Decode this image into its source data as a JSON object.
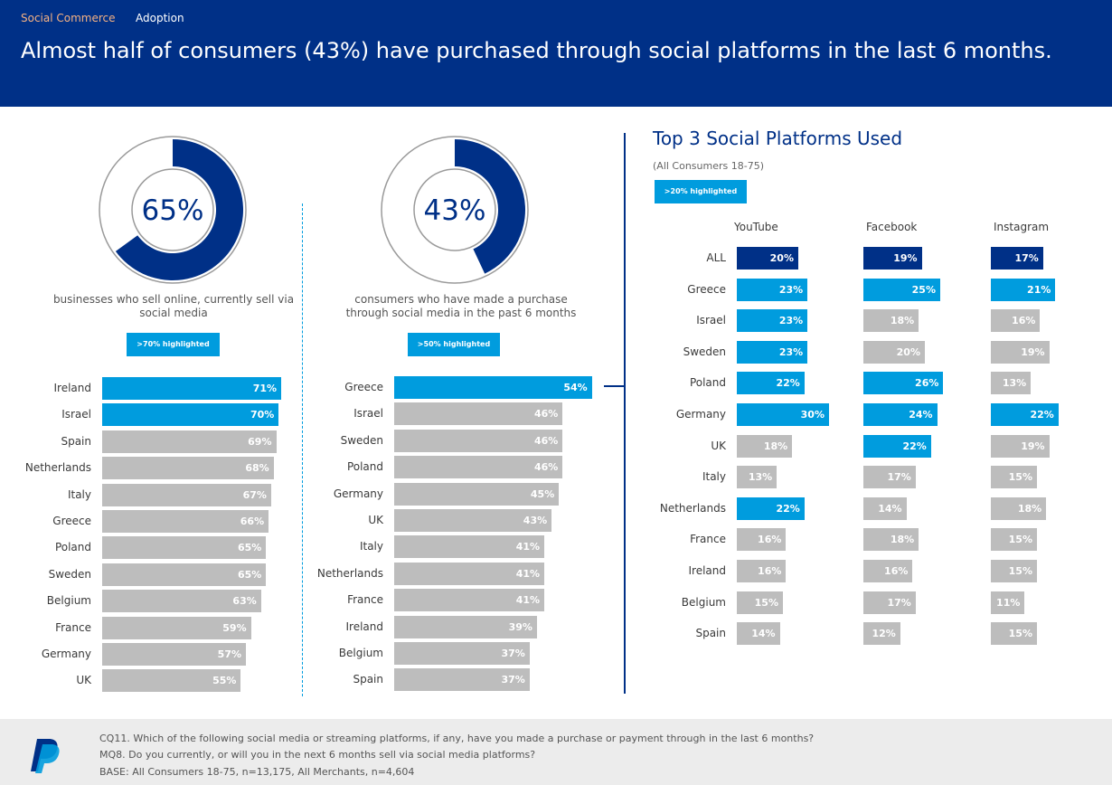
{
  "header": {
    "tabs": [
      "Social Commerce",
      "Adoption"
    ],
    "headline": "Almost half of consumers (43%) have purchased through social platforms in the last 6 months."
  },
  "colors": {
    "navy": "#003087",
    "highlight": "#009cde",
    "grey": "#bdbdbd",
    "tab_active": "#f4b183"
  },
  "donuts": [
    {
      "value_label": "65%",
      "value": 65,
      "label": "businesses who sell online, currently sell via social media",
      "badge": ">70% highlighted"
    },
    {
      "value_label": "43%",
      "value": 43,
      "label": "consumers who have made a purchase through social media in the past 6 months",
      "badge": ">50% highlighted"
    }
  ],
  "right_panel": {
    "title": "Top 3 Social Platforms Used",
    "subtitle": "(All Consumers 18-75)",
    "badge": ">20% highlighted",
    "columns": [
      "YouTube",
      "Facebook",
      "Instagram"
    ]
  },
  "footer": {
    "lines": [
      "CQ11. Which of the following social media or streaming platforms, if any, have you made a purchase or payment through in the last 6 months?",
      "MQ8. Do you currently, or will you in the next 6 months sell via social media platforms?",
      "BASE: All Consumers 18-75, n=13,175, All Merchants, n=4,604"
    ],
    "logo_icon": "paypal-logo-icon"
  },
  "chart_data": [
    {
      "type": "bar",
      "orientation": "horizontal",
      "categories": [
        "Ireland",
        "Israel",
        "Spain",
        "Netherlands",
        "Italy",
        "Greece",
        "Poland",
        "Sweden",
        "Belgium",
        "France",
        "Germany",
        "UK"
      ],
      "values": [
        71,
        70,
        69,
        68,
        67,
        66,
        65,
        65,
        63,
        59,
        57,
        55
      ],
      "labels": [
        "71%",
        "70%",
        "69%",
        "68%",
        "67%",
        "66%",
        "65%",
        "65%",
        "63%",
        "59%",
        "57%",
        "55%"
      ],
      "highlight_threshold": 70
    },
    {
      "type": "bar",
      "orientation": "horizontal",
      "categories": [
        "Greece",
        "Israel",
        "Sweden",
        "Poland",
        "Germany",
        "UK",
        "Italy",
        "Netherlands",
        "France",
        "Ireland",
        "Belgium",
        "Spain"
      ],
      "values": [
        54,
        46,
        46,
        46,
        45,
        43,
        41,
        41,
        41,
        39,
        37,
        37
      ],
      "labels": [
        "54%",
        "46%",
        "46%",
        "46%",
        "45%",
        "43%",
        "41%",
        "41%",
        "41%",
        "39%",
        "37%",
        "37%"
      ],
      "highlight_threshold": 50
    },
    {
      "type": "bar",
      "orientation": "horizontal",
      "title": "Top 3 Social Platforms Used",
      "categories": [
        "ALL",
        "Greece",
        "Israel",
        "Sweden",
        "Poland",
        "Germany",
        "UK",
        "Italy",
        "Netherlands",
        "France",
        "Ireland",
        "Belgium",
        "Spain"
      ],
      "series": [
        {
          "name": "YouTube",
          "values": [
            20,
            23,
            23,
            23,
            22,
            30,
            18,
            13,
            22,
            16,
            16,
            15,
            14
          ],
          "labels": [
            "20%",
            "23%",
            "23%",
            "23%",
            "22%",
            "30%",
            "18%",
            "13%",
            "22%",
            "16%",
            "16%",
            "15%",
            "14%"
          ]
        },
        {
          "name": "Facebook",
          "values": [
            19,
            25,
            18,
            20,
            26,
            24,
            22,
            17,
            14,
            18,
            16,
            17,
            12
          ],
          "labels": [
            "19%",
            "25%",
            "18%",
            "20%",
            "26%",
            "24%",
            "22%",
            "17%",
            "14%",
            "18%",
            "16%",
            "17%",
            "12%"
          ]
        },
        {
          "name": "Instagram",
          "values": [
            17,
            21,
            16,
            19,
            13,
            22,
            19,
            15,
            18,
            15,
            15,
            11,
            15
          ],
          "labels": [
            "17%",
            "21%",
            "16%",
            "19%",
            "13%",
            "22%",
            "19%",
            "15%",
            "18%",
            "15%",
            "15%",
            "11%",
            "15%"
          ]
        }
      ],
      "highlight_threshold": 20
    }
  ]
}
